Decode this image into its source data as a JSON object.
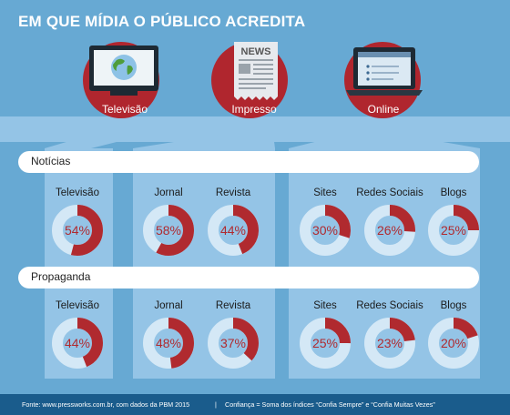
{
  "title": "EM QUE MÍDIA O PÚBLICO ACREDITA",
  "media": [
    {
      "label": "Televisão",
      "icon": "television-icon"
    },
    {
      "label": "Impresso",
      "icon": "newspaper-icon",
      "icon_text": "NEWS"
    },
    {
      "label": "Online",
      "icon": "laptop-icon"
    }
  ],
  "colors": {
    "background": "#67a9d3",
    "panel": "#94c4e6",
    "ring_track": "#d4e8f6",
    "ring_fill": "#b02a2f",
    "circle_red": "#b0262e",
    "footer": "#1a5c8c"
  },
  "chart_data": [
    {
      "type": "pie",
      "title": "Notícias",
      "categories": [
        "Televisão",
        "Jornal",
        "Revista",
        "Sites",
        "Redes Sociais",
        "Blogs"
      ],
      "values": [
        54,
        58,
        44,
        30,
        26,
        25
      ],
      "labels": [
        "54%",
        "58%",
        "44%",
        "30%",
        "26%",
        "25%"
      ]
    },
    {
      "type": "pie",
      "title": "Propaganda",
      "categories": [
        "Televisão",
        "Jornal",
        "Revista",
        "Sites",
        "Redes Sociais",
        "Blogs"
      ],
      "values": [
        44,
        48,
        37,
        25,
        23,
        20
      ],
      "labels": [
        "44%",
        "48%",
        "37%",
        "25%",
        "23%",
        "20%"
      ]
    }
  ],
  "footer": {
    "source": "Fonte: www.pressworks.com.br, com dados da PBM 2015",
    "separator": "|",
    "note": "Confiança = Soma dos índices “Confia Sempre” e “Confia Muitas Vezes”"
  }
}
